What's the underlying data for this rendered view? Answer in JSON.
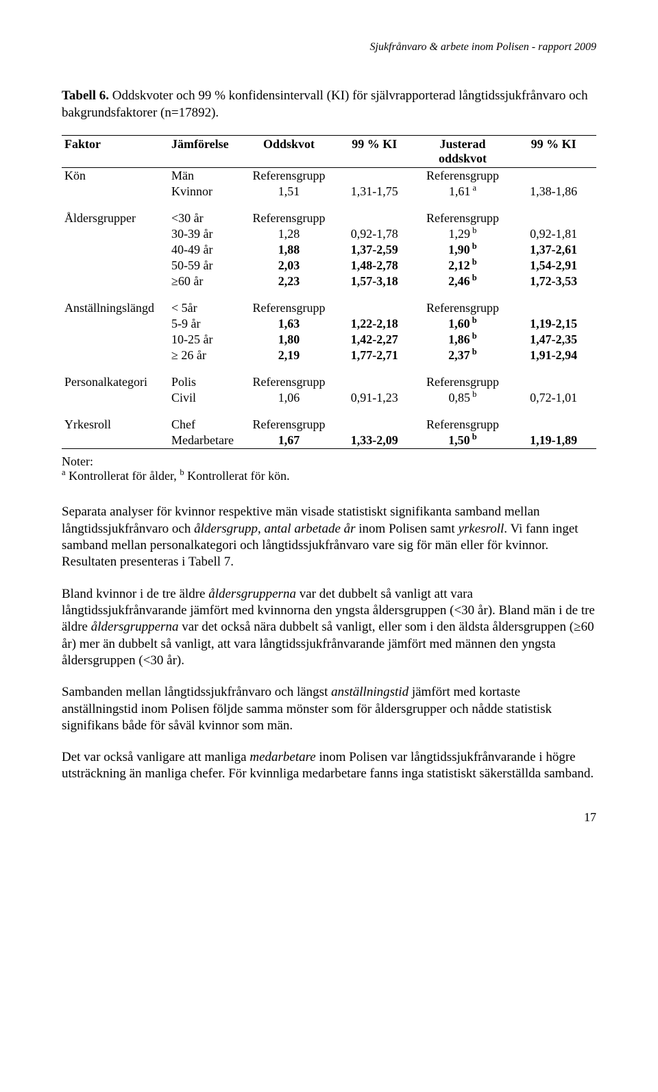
{
  "header": "Sjukfrånvaro & arbete inom Polisen - rapport 2009",
  "caption_label": "Tabell 6.",
  "caption_text": " Oddskvoter och 99 % konfidensintervall (KI) för självrapporterad långtidssjukfrånvaro och bakgrundsfaktorer (n=17892).",
  "th": {
    "c1": "Faktor",
    "c2": "Jämförelse",
    "c3": "Oddskvot",
    "c4": "99 % KI",
    "c5a": "Justerad",
    "c5b": "oddskvot",
    "c6": "99 % KI"
  },
  "groups": [
    {
      "name": "Kön",
      "rows": [
        {
          "c2": "Män",
          "c3": "Referensgrupp",
          "c4": "",
          "c5": "Referensgrupp",
          "c5sup": "",
          "c6": "",
          "bold": false
        },
        {
          "c2": "Kvinnor",
          "c3": "1,51",
          "c4": "1,31-1,75",
          "c5": "1,61",
          "c5sup": "a",
          "c6": "1,38-1,86",
          "bold": false
        }
      ]
    },
    {
      "name": "Åldersgrupper",
      "rows": [
        {
          "c2": "<30 år",
          "c3": "Referensgrupp",
          "c4": "",
          "c5": "Referensgrupp",
          "c5sup": "",
          "c6": "",
          "bold": false
        },
        {
          "c2": "30-39 år",
          "c3": "1,28",
          "c4": "0,92-1,78",
          "c5": "1,29",
          "c5sup": "b",
          "c6": "0,92-1,81",
          "bold": false
        },
        {
          "c2": "40-49 år",
          "c3": "1,88",
          "c4": "1,37-2,59",
          "c5": "1,90",
          "c5sup": "b",
          "c6": "1,37-2,61",
          "bold": true
        },
        {
          "c2": "50-59 år",
          "c3": "2,03",
          "c4": "1,48-2,78",
          "c5": "2,12",
          "c5sup": "b",
          "c6": "1,54-2,91",
          "bold": true
        },
        {
          "c2": "≥60 år",
          "c3": "2,23",
          "c4": "1,57-3,18",
          "c5": "2,46",
          "c5sup": "b",
          "c6": "1,72-3,53",
          "bold": true
        }
      ]
    },
    {
      "name": "Anställningslängd",
      "rows": [
        {
          "c2": "< 5år",
          "c3": "Referensgrupp",
          "c4": "",
          "c5": "Referensgrupp",
          "c5sup": "",
          "c6": "",
          "bold": false
        },
        {
          "c2": "5-9 år",
          "c3": "1,63",
          "c4": "1,22-2,18",
          "c5": "1,60",
          "c5sup": "b",
          "c6": "1,19-2,15",
          "bold": true
        },
        {
          "c2": "10-25 år",
          "c3": "1,80",
          "c4": "1,42-2,27",
          "c5": "1,86",
          "c5sup": "b",
          "c6": "1,47-2,35",
          "bold": true
        },
        {
          "c2": "≥ 26 år",
          "c3": "2,19",
          "c4": "1,77-2,71",
          "c5": "2,37",
          "c5sup": "b",
          "c6": "1,91-2,94",
          "bold": true
        }
      ]
    },
    {
      "name": "Personalkategori",
      "rows": [
        {
          "c2": "Polis",
          "c3": "Referensgrupp",
          "c4": "",
          "c5": "Referensgrupp",
          "c5sup": "",
          "c6": "",
          "bold": false
        },
        {
          "c2": "Civil",
          "c3": "1,06",
          "c4": "0,91-1,23",
          "c5": "0,85",
          "c5sup": "b",
          "c6": "0,72-1,01",
          "bold": false
        }
      ]
    },
    {
      "name": "Yrkesroll",
      "rows": [
        {
          "c2": "Chef",
          "c3": "Referensgrupp",
          "c4": "",
          "c5": "Referensgrupp",
          "c5sup": "",
          "c6": "",
          "bold": false
        },
        {
          "c2": "Medarbetare",
          "c3": "1,67",
          "c4": "1,33-2,09",
          "c5": "1,50",
          "c5sup": "b",
          "c6": "1,19-1,89",
          "bold": true
        }
      ]
    }
  ],
  "notes_label": "Noter:",
  "notes_a_sup": "a",
  "notes_a": " Kontrollerat för ålder, ",
  "notes_b_sup": "b",
  "notes_b": " Kontrollerat för kön.",
  "paras": [
    "Separata analyser för kvinnor respektive män visade statistiskt signifikanta samband mellan långtidssjukfrånvaro och <span class=\"italic\">åldersgrupp</span>, <span class=\"italic\">antal arbetade år</span> inom Polisen samt <span class=\"italic\">yrkesroll</span>. Vi fann inget samband mellan personalkategori och långtidssjukfrånvaro vare sig för män eller för kvinnor. Resultaten presenteras i Tabell 7.",
    "Bland kvinnor i de tre äldre <span class=\"italic\">åldersgrupperna</span> var det dubbelt så vanligt att vara långtidssjukfrånvarande jämfört med kvinnorna den yngsta åldersgruppen (&lt;30 år). Bland män i de tre äldre <span class=\"italic\">åldersgrupperna</span> var det också nära dubbelt så vanligt, eller som i den äldsta åldersgruppen (≥60 år) mer än dubbelt så vanligt, att vara långtidssjukfrånvarande jämfört med männen den yngsta åldersgruppen (&lt;30 år).",
    "Sambanden mellan långtidssjukfrånvaro och längst <span class=\"italic\">anställningstid</span> jämfört med kortaste anställningstid inom Polisen följde samma mönster som för åldersgrupper och nådde statistisk signifikans både för såväl kvinnor som män.",
    "Det var också vanligare att manliga <span class=\"italic\">medarbetare</span> inom Polisen var långtidssjukfrånvarande i högre utsträckning än manliga chefer. För kvinnliga medarbetare fanns inga statistiskt säkerställda samband."
  ],
  "page_num": "17"
}
